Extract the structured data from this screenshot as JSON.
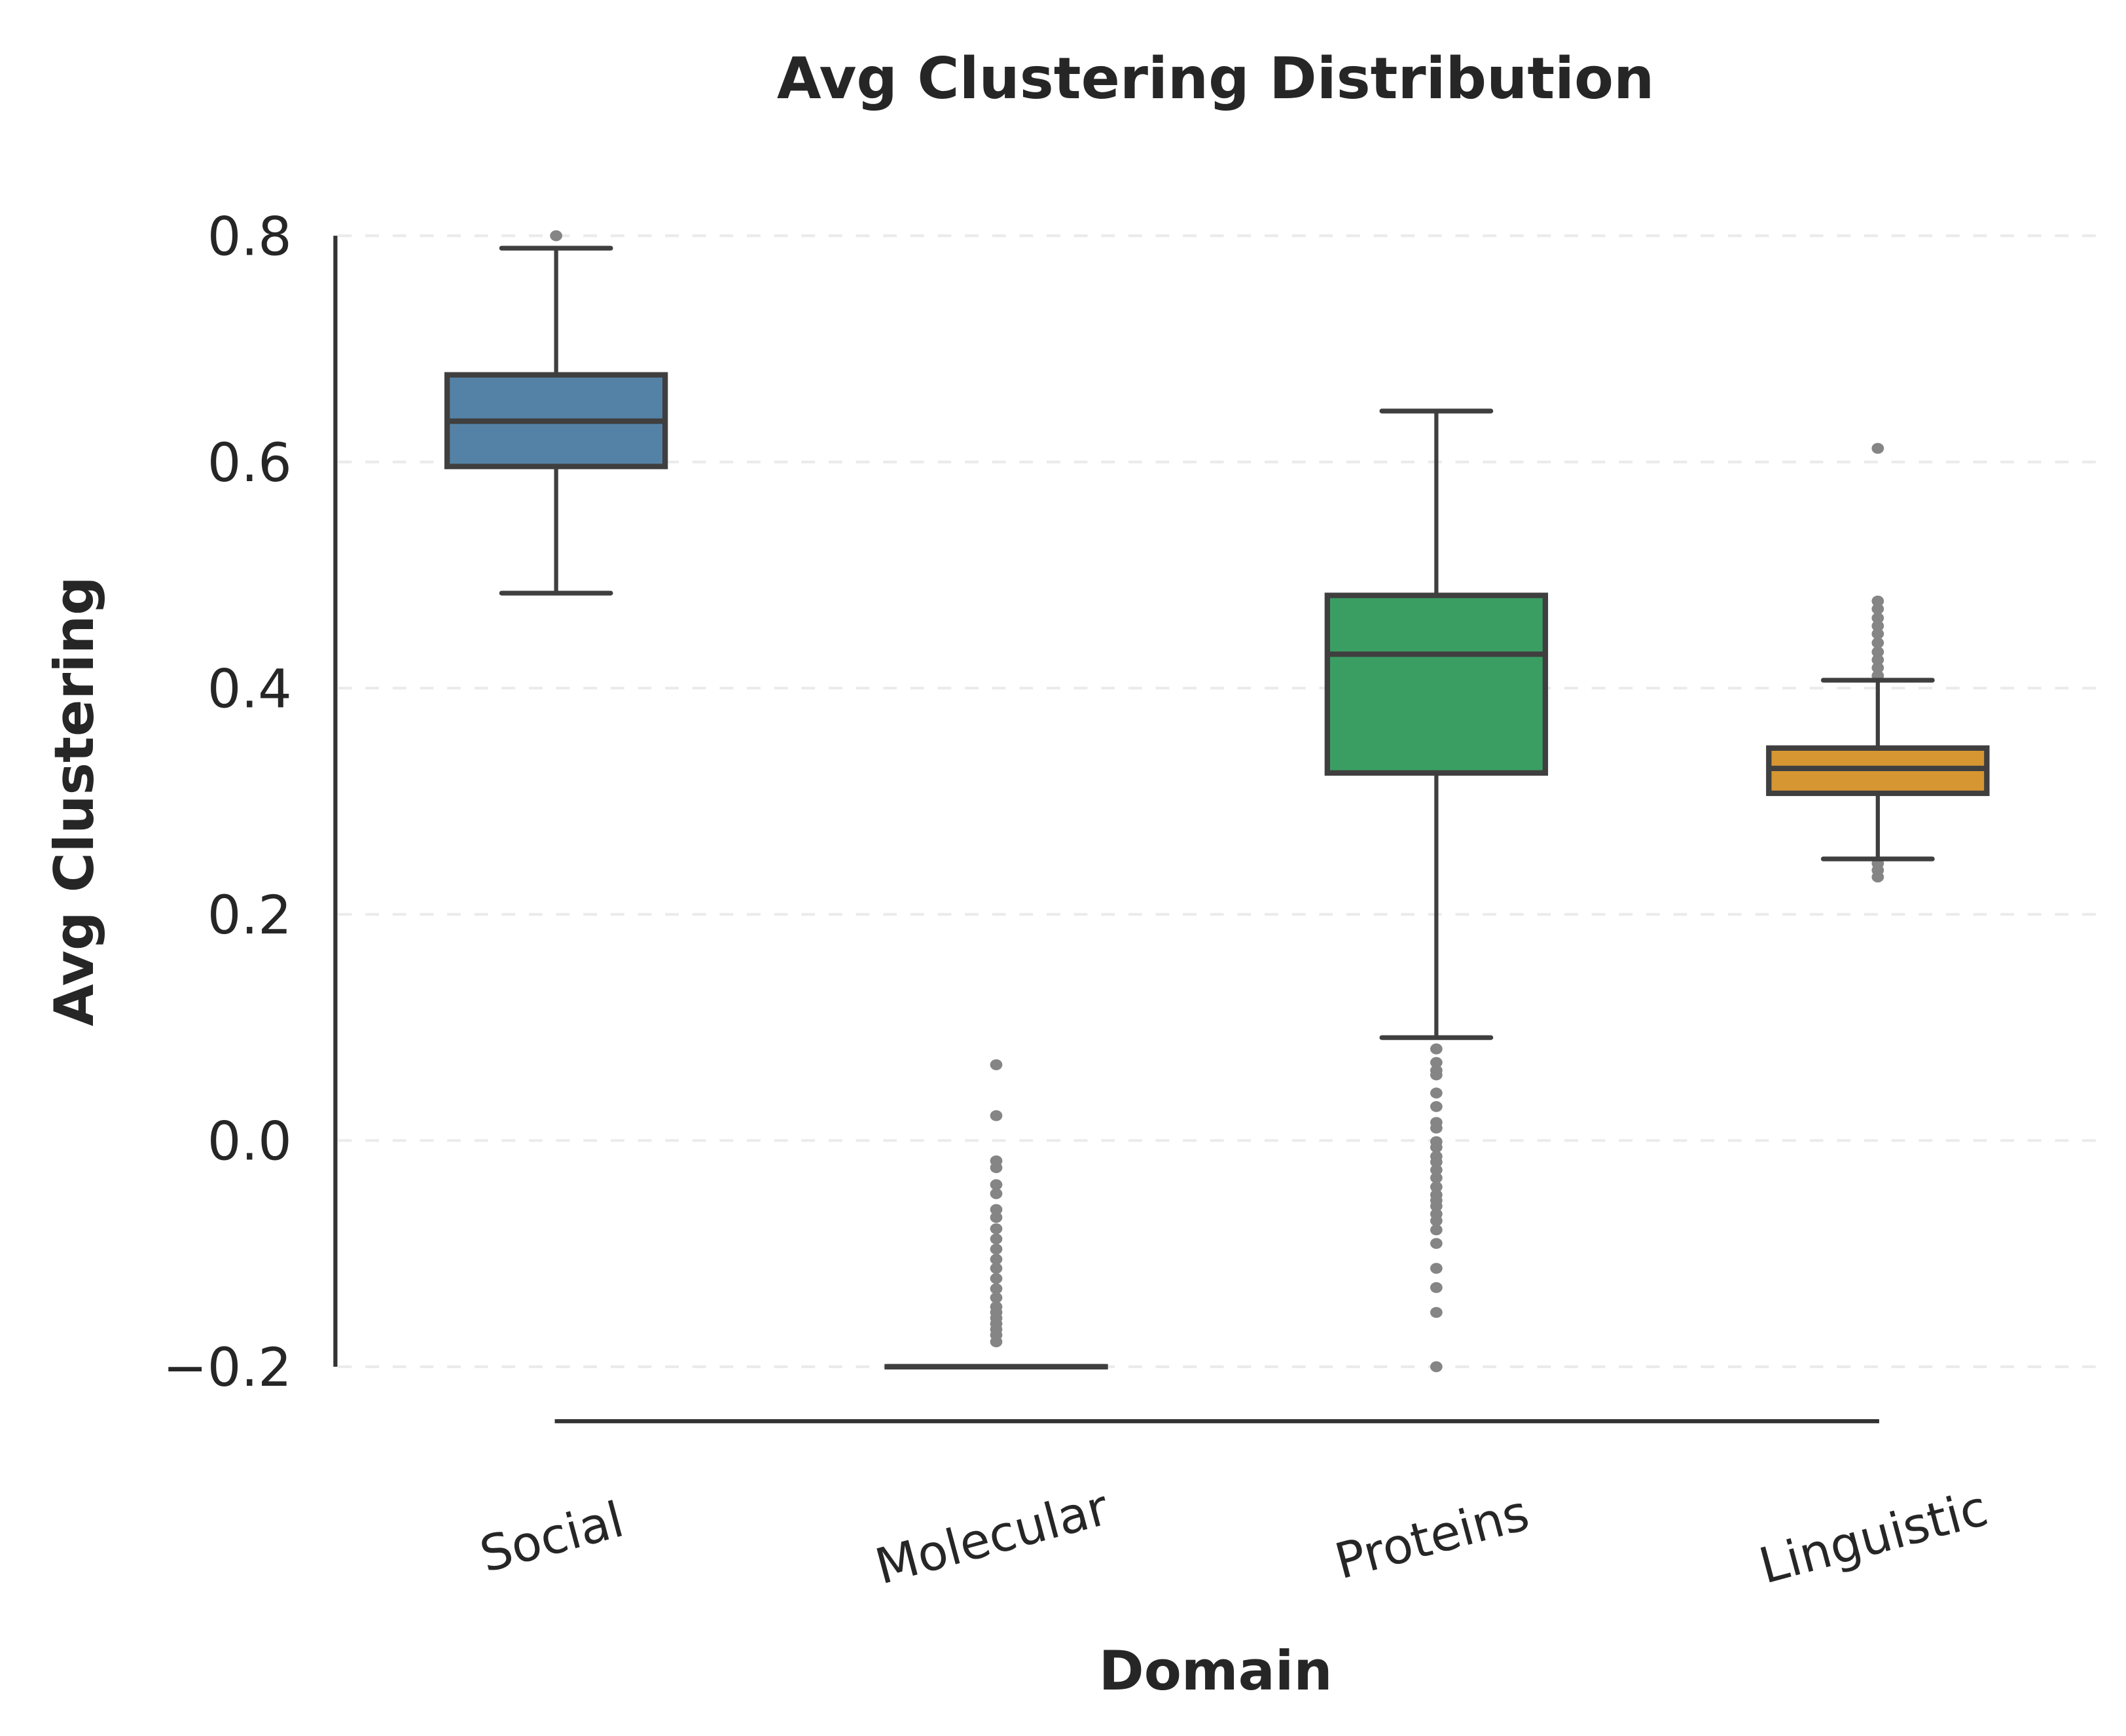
{
  "chart_data": {
    "type": "box",
    "title": "Avg Clustering Distribution",
    "xlabel": "Domain",
    "ylabel": "Avg Clustering",
    "ylim": [
      -0.2,
      0.8
    ],
    "yticks": [
      -0.2,
      0.0,
      0.2,
      0.4,
      0.6,
      0.8
    ],
    "ytick_labels": [
      "−0.2",
      "0.0",
      "0.2",
      "0.4",
      "0.6",
      "0.8"
    ],
    "grid": "y-dashed",
    "categories": [
      "Social",
      "Molecular",
      "Proteins",
      "Linguistic"
    ],
    "boxes": [
      {
        "category": "Social",
        "color": "#5482a6",
        "whisker_low": 0.484,
        "q1": 0.596,
        "median": 0.636,
        "q3": 0.677,
        "whisker_high": 0.789,
        "outliers": [
          0.8
        ]
      },
      {
        "category": "Molecular",
        "color": null,
        "whisker_low": -0.2,
        "q1": -0.2,
        "median": -0.2,
        "q3": -0.2,
        "whisker_high": -0.2,
        "outliers": [
          0.067,
          0.022,
          -0.018,
          -0.024,
          -0.039,
          -0.047,
          -0.061,
          -0.068,
          -0.078,
          -0.087,
          -0.096,
          -0.105,
          -0.113,
          -0.122,
          -0.131,
          -0.139,
          -0.147,
          -0.152,
          -0.157,
          -0.162,
          -0.167,
          -0.172,
          -0.178
        ]
      },
      {
        "category": "Proteins",
        "color": "#3a9e63",
        "whisker_low": 0.091,
        "q1": 0.325,
        "median": 0.43,
        "q3": 0.482,
        "whisker_high": 0.645,
        "outliers": [
          0.081,
          0.069,
          0.062,
          0.058,
          0.042,
          0.03,
          0.016,
          0.011,
          -0.001,
          -0.006,
          -0.014,
          -0.019,
          -0.026,
          -0.033,
          -0.041,
          -0.048,
          -0.053,
          -0.058,
          -0.065,
          -0.071,
          -0.079,
          -0.091,
          -0.113,
          -0.13,
          -0.152,
          -0.2
        ]
      },
      {
        "category": "Linguistic",
        "color": "#d69732",
        "whisker_low": 0.249,
        "q1": 0.307,
        "median": 0.329,
        "q3": 0.347,
        "whisker_high": 0.407,
        "outliers": [
          0.612,
          0.477,
          0.47,
          0.462,
          0.455,
          0.448,
          0.44,
          0.432,
          0.425,
          0.418,
          0.411,
          0.245,
          0.239,
          0.233
        ]
      }
    ],
    "line_color": "#3f3f3f",
    "outlier_color": "#858585"
  }
}
